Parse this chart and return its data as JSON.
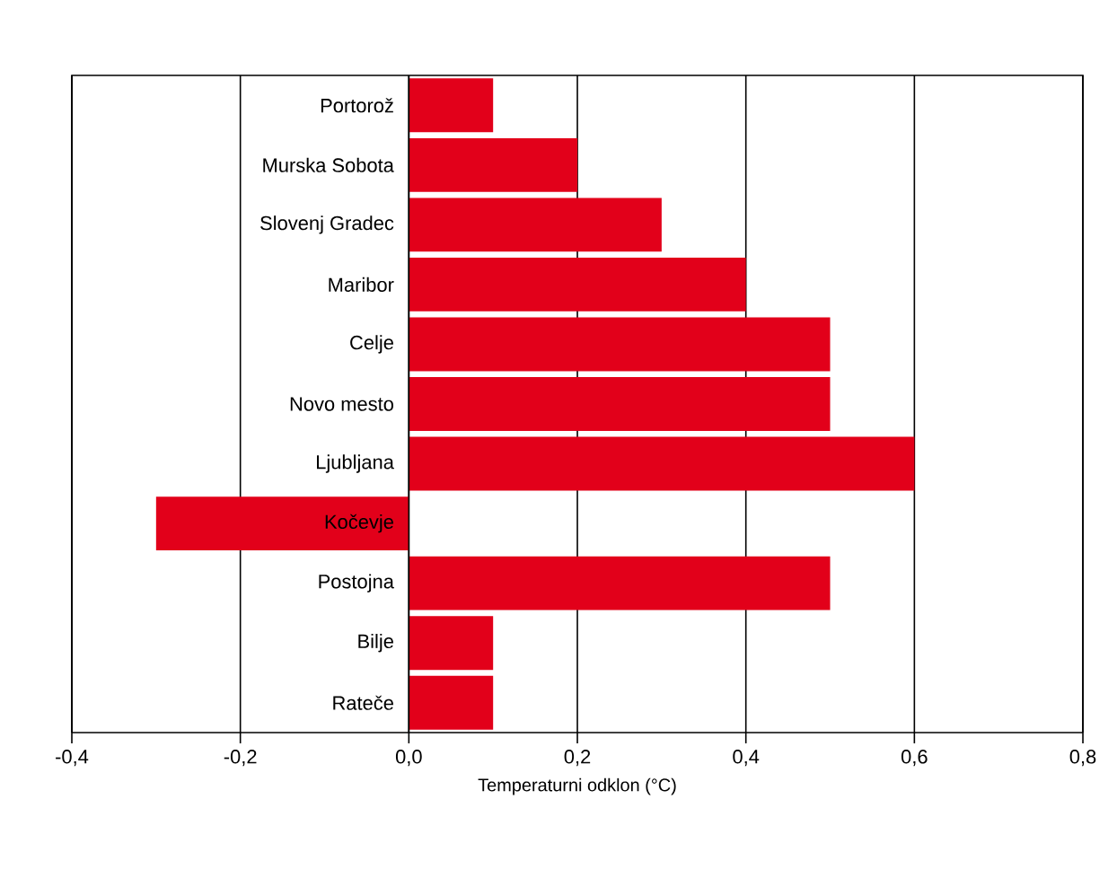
{
  "chart_data": {
    "type": "bar",
    "orientation": "horizontal",
    "xlabel": "Temperaturni odklon (°C)",
    "categories": [
      "Portorož",
      "Murska Sobota",
      "Slovenj Gradec",
      "Maribor",
      "Celje",
      "Novo mesto",
      "Ljubljana",
      "Kočevje",
      "Postojna",
      "Bilje",
      "Rateče"
    ],
    "values": [
      0.1,
      0.2,
      0.3,
      0.4,
      0.5,
      0.5,
      0.6,
      -0.3,
      0.5,
      0.1,
      0.1
    ],
    "color": "#e2001a",
    "xlim": [
      -0.4,
      0.8
    ],
    "xticks": [
      {
        "value": -0.4,
        "label": "-0,4"
      },
      {
        "value": -0.2,
        "label": "-0,2"
      },
      {
        "value": 0.0,
        "label": "0,0"
      },
      {
        "value": 0.2,
        "label": "0,2"
      },
      {
        "value": 0.4,
        "label": "0,4"
      },
      {
        "value": 0.6,
        "label": "0,6"
      },
      {
        "value": 0.8,
        "label": "0,8"
      }
    ],
    "grid": "x"
  }
}
